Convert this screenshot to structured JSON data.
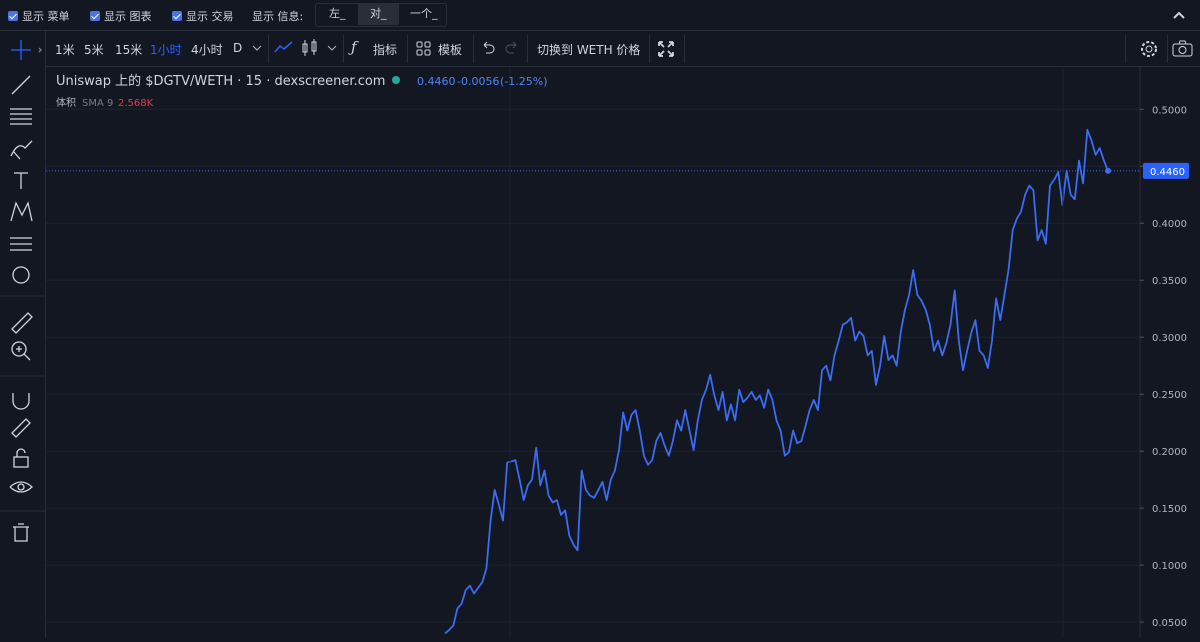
{
  "top_bar": {
    "checkboxes": [
      "显示 菜单",
      "显示 图表",
      "显示 交易"
    ],
    "info_label": "显示 信息:",
    "info_options": [
      "左_",
      "对_",
      "一个_"
    ]
  },
  "toolbar": {
    "intervals": [
      "1米",
      "5米",
      "15米",
      "1小时",
      "4小时",
      "D"
    ],
    "indicators": "指标",
    "templates": "模板",
    "switch": "切换到 WETH 价格"
  },
  "chart_data": {
    "type": "line",
    "title": "Uniswap 上的 $DGTV/WETH · 15 · dexscreener.com",
    "price": {
      "value": 0.446,
      "label": "0.4460"
    },
    "change": "-0.0056",
    "change_pct": "(-1.25%)",
    "volume_label": "体积",
    "volume_sma": "SMA 9",
    "volume_value": "2.568K",
    "color": "#3a6cf4",
    "grid": true,
    "ylim": [
      0.036,
      0.538
    ],
    "yticks": [
      {
        "value": 0.05,
        "label": "0.0500"
      },
      {
        "value": 0.1,
        "label": "0.1000"
      },
      {
        "value": 0.15,
        "label": "0.1500"
      },
      {
        "value": 0.2,
        "label": "0.2000"
      },
      {
        "value": 0.25,
        "label": "0.2500"
      },
      {
        "value": 0.3,
        "label": "0.3000"
      },
      {
        "value": 0.35,
        "label": "0.3500"
      },
      {
        "value": 0.4,
        "label": "0.4000"
      },
      {
        "value": 0.45,
        "label": "0.4500"
      },
      {
        "value": 0.5,
        "label": "0.5000"
      }
    ],
    "values": [
      0.04,
      0.043,
      0.047,
      0.062,
      0.066,
      0.078,
      0.082,
      0.075,
      0.08,
      0.085,
      0.097,
      0.139,
      0.166,
      0.153,
      0.139,
      0.19,
      0.191,
      0.192,
      0.175,
      0.157,
      0.17,
      0.175,
      0.203,
      0.17,
      0.183,
      0.161,
      0.155,
      0.157,
      0.144,
      0.148,
      0.126,
      0.118,
      0.113,
      0.183,
      0.166,
      0.161,
      0.159,
      0.166,
      0.173,
      0.157,
      0.175,
      0.183,
      0.201,
      0.234,
      0.218,
      0.232,
      0.236,
      0.218,
      0.196,
      0.188,
      0.192,
      0.209,
      0.216,
      0.205,
      0.196,
      0.209,
      0.227,
      0.218,
      0.236,
      0.218,
      0.201,
      0.227,
      0.245,
      0.254,
      0.267,
      0.249,
      0.236,
      0.252,
      0.227,
      0.241,
      0.227,
      0.254,
      0.243,
      0.247,
      0.252,
      0.245,
      0.249,
      0.238,
      0.254,
      0.245,
      0.227,
      0.218,
      0.196,
      0.199,
      0.218,
      0.207,
      0.209,
      0.222,
      0.236,
      0.245,
      0.236,
      0.271,
      0.275,
      0.262,
      0.284,
      0.297,
      0.311,
      0.313,
      0.317,
      0.297,
      0.305,
      0.301,
      0.284,
      0.288,
      0.258,
      0.275,
      0.301,
      0.28,
      0.284,
      0.275,
      0.305,
      0.324,
      0.337,
      0.359,
      0.337,
      0.332,
      0.324,
      0.311,
      0.288,
      0.297,
      0.284,
      0.295,
      0.311,
      0.341,
      0.297,
      0.271,
      0.288,
      0.304,
      0.315,
      0.288,
      0.284,
      0.273,
      0.297,
      0.334,
      0.315,
      0.337,
      0.359,
      0.394,
      0.404,
      0.41,
      0.425,
      0.433,
      0.429,
      0.385,
      0.394,
      0.382,
      0.433,
      0.438,
      0.445,
      0.416,
      0.446,
      0.425,
      0.421,
      0.455,
      0.435,
      0.482,
      0.473,
      0.46,
      0.466,
      0.455,
      0.446
    ]
  }
}
